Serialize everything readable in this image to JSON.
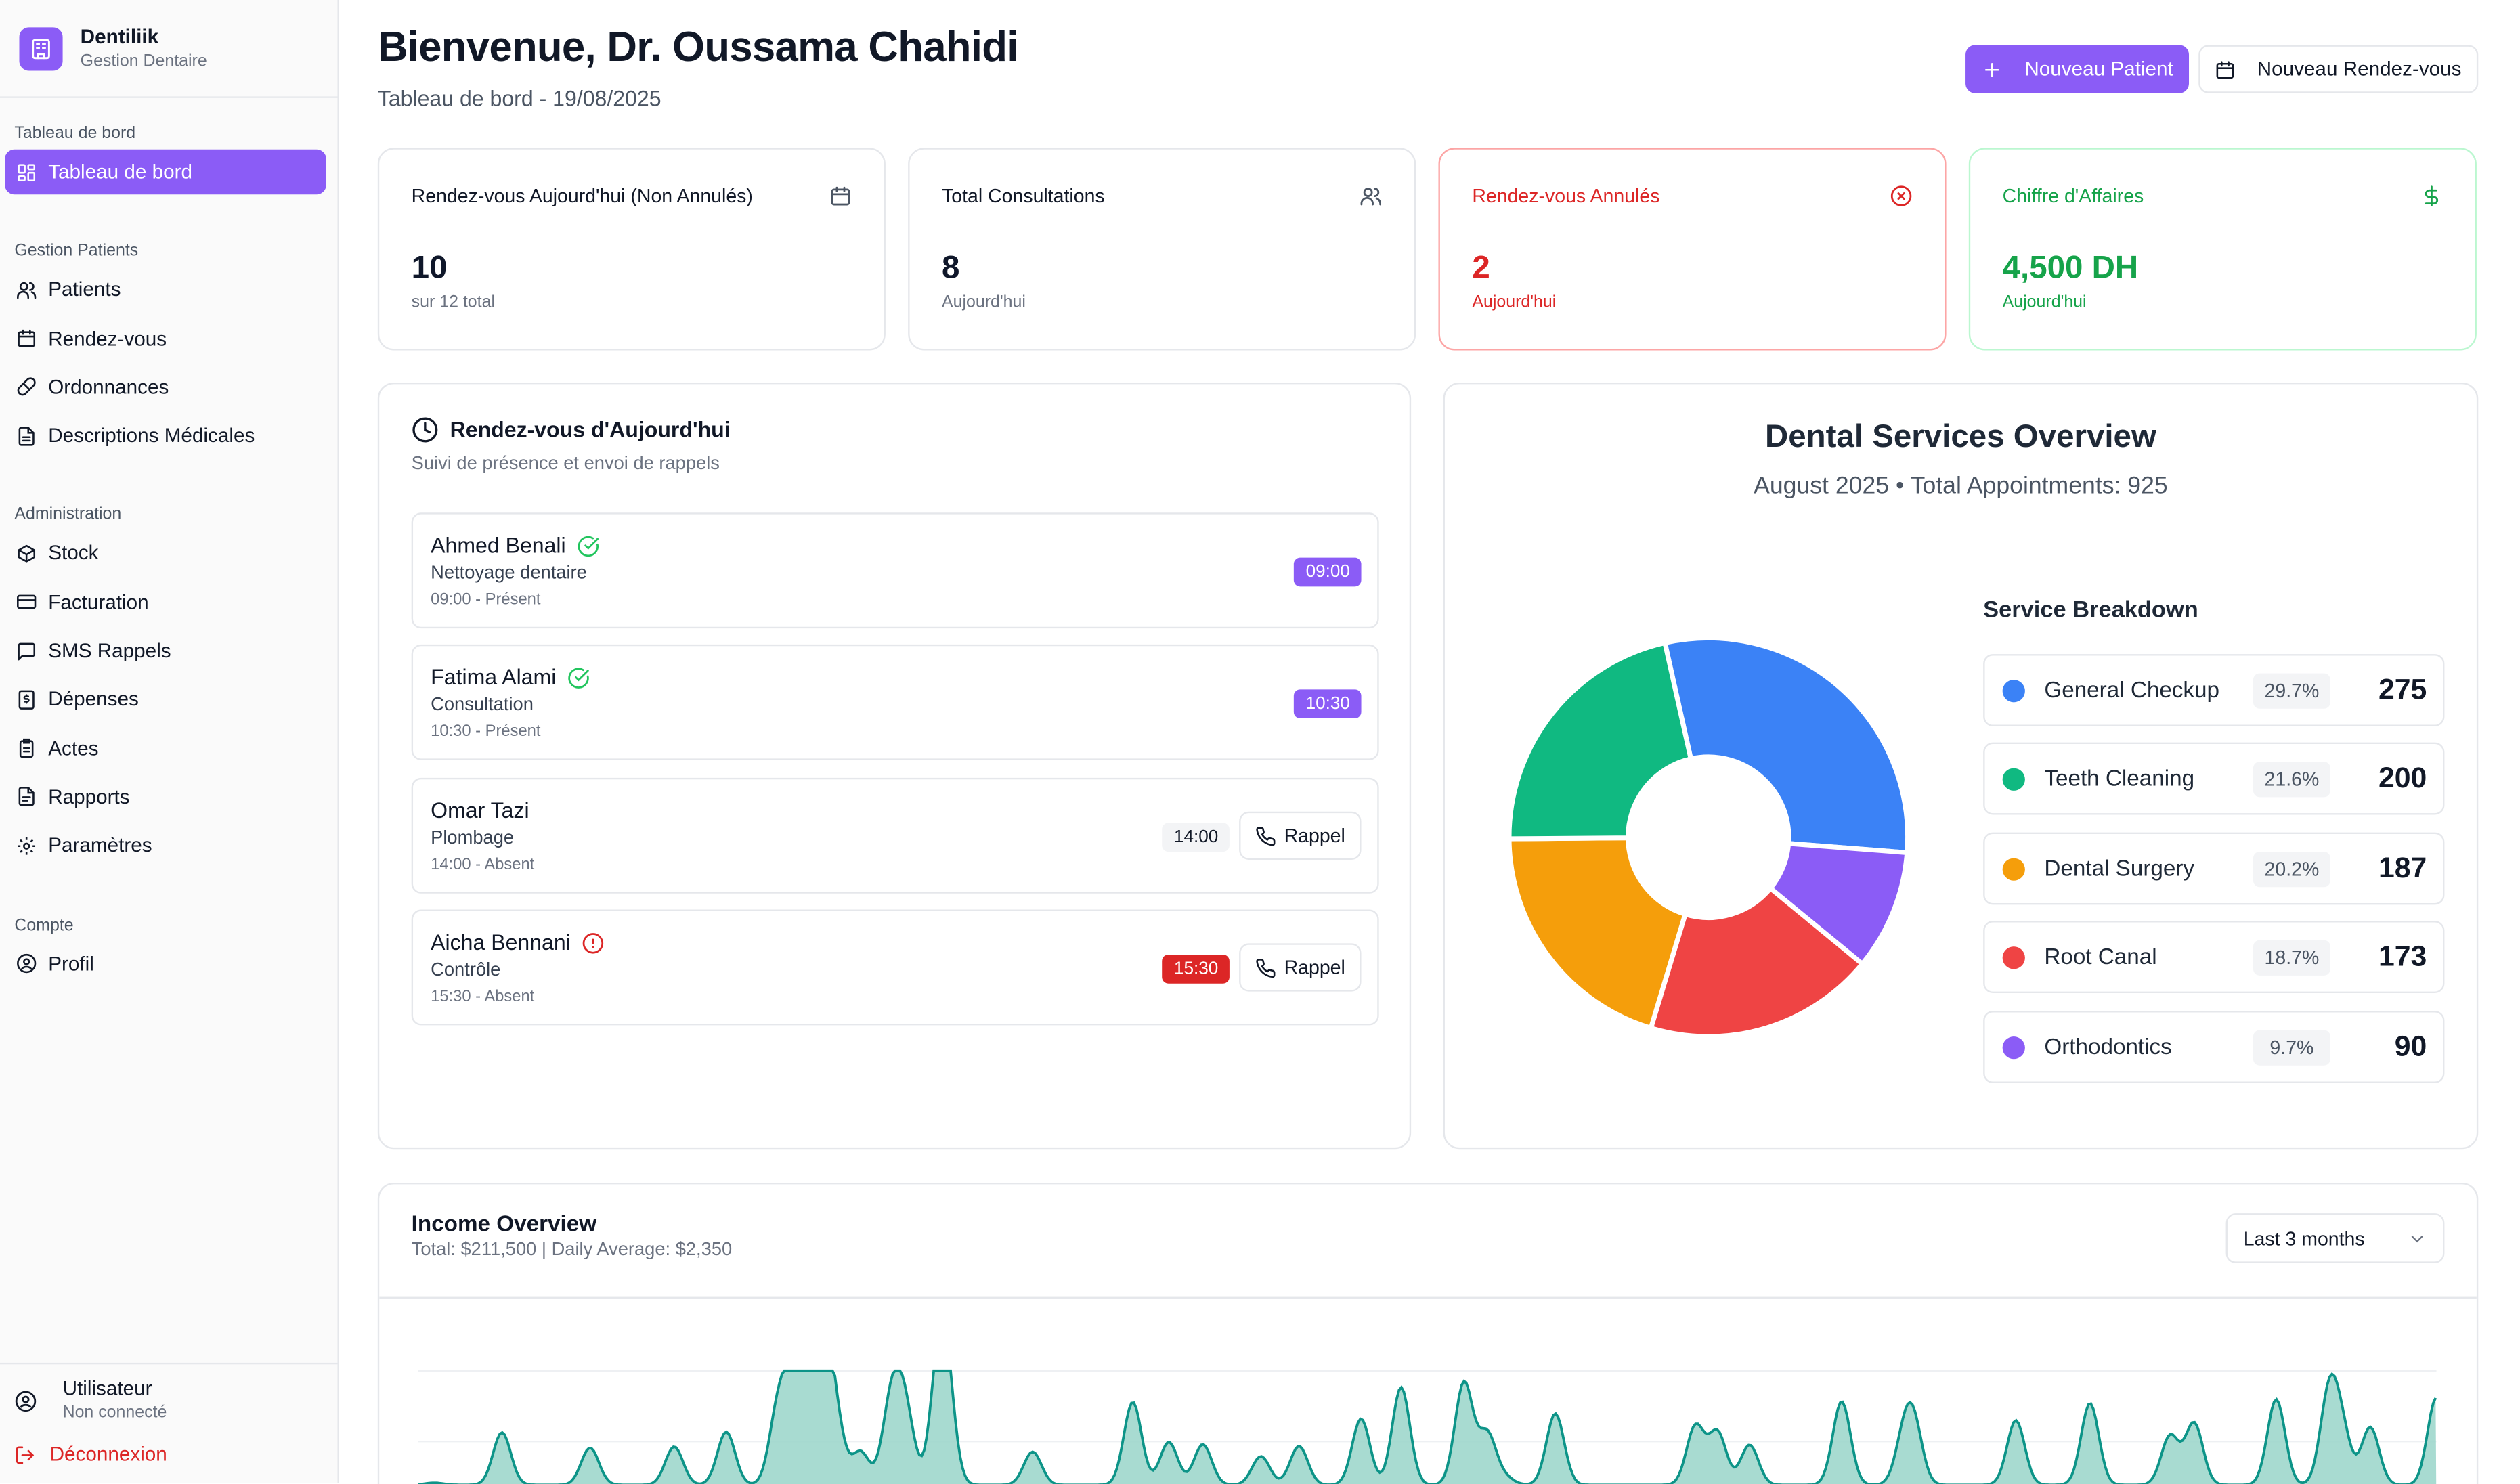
{
  "brand": {
    "name": "Dentiliik",
    "subtitle": "Gestion Dentaire"
  },
  "sidebar": {
    "groups": [
      {
        "label": "Tableau de bord",
        "items": [
          {
            "label": "Tableau de bord",
            "icon": "dashboard-icon",
            "active": true
          }
        ]
      },
      {
        "label": "Gestion Patients",
        "items": [
          {
            "label": "Patients",
            "icon": "users-icon"
          },
          {
            "label": "Rendez-vous",
            "icon": "calendar-icon"
          },
          {
            "label": "Ordonnances",
            "icon": "pill-icon"
          },
          {
            "label": "Descriptions Médicales",
            "icon": "file-text-icon"
          }
        ]
      },
      {
        "label": "Administration",
        "items": [
          {
            "label": "Stock",
            "icon": "package-icon"
          },
          {
            "label": "Facturation",
            "icon": "credit-card-icon"
          },
          {
            "label": "SMS Rappels",
            "icon": "message-icon"
          },
          {
            "label": "Dépenses",
            "icon": "receipt-icon"
          },
          {
            "label": "Actes",
            "icon": "clipboard-icon"
          },
          {
            "label": "Rapports",
            "icon": "report-icon"
          },
          {
            "label": "Paramètres",
            "icon": "gear-icon"
          }
        ]
      },
      {
        "label": "Compte",
        "items": [
          {
            "label": "Profil",
            "icon": "user-circle-icon"
          }
        ]
      }
    ],
    "user": {
      "name": "Utilisateur",
      "status": "Non connecté"
    },
    "logout_label": "Déconnexion"
  },
  "header": {
    "title": "Bienvenue, Dr. Oussama Chahidi",
    "subtitle": "Tableau de bord - 19/08/2025",
    "new_patient_label": "Nouveau Patient",
    "new_appointment_label": "Nouveau Rendez-vous"
  },
  "stats": [
    {
      "label": "Rendez-vous Aujourd'hui (Non Annulés)",
      "value": "10",
      "footer": "sur 12 total",
      "icon": "calendar-icon",
      "tone": "default"
    },
    {
      "label": "Total Consultations",
      "value": "8",
      "footer": "Aujourd'hui",
      "icon": "users-icon",
      "tone": "default"
    },
    {
      "label": "Rendez-vous Annulés",
      "value": "2",
      "footer": "Aujourd'hui",
      "icon": "x-circle-icon",
      "tone": "red"
    },
    {
      "label": "Chiffre d'Affaires",
      "value": "4,500 DH",
      "footer": "Aujourd'hui",
      "icon": "dollar-icon",
      "tone": "green"
    }
  ],
  "appointments": {
    "title": "Rendez-vous d'Aujourd'hui",
    "subtitle": "Suivi de présence et envoi de rappels",
    "rappel_label": "Rappel",
    "items": [
      {
        "name": "Ahmed Benali",
        "service": "Nettoyage dentaire",
        "meta": "09:00 - Présent",
        "time": "09:00",
        "status": "present"
      },
      {
        "name": "Fatima Alami",
        "service": "Consultation",
        "meta": "10:30 - Présent",
        "time": "10:30",
        "status": "present"
      },
      {
        "name": "Omar Tazi",
        "service": "Plombage",
        "meta": "14:00 - Absent",
        "time": "14:00",
        "status": "absent"
      },
      {
        "name": "Aicha Bennani",
        "service": "Contrôle",
        "meta": "15:30 - Absent",
        "time": "15:30",
        "status": "alert"
      }
    ]
  },
  "services": {
    "title": "Dental Services Overview",
    "subtitle": "August 2025 • Total Appointments: 925",
    "breakdown_title": "Service Breakdown",
    "items": [
      {
        "label": "General Checkup",
        "pct": "29.7%",
        "count": "275",
        "color": "#3b82f6"
      },
      {
        "label": "Teeth Cleaning",
        "pct": "21.6%",
        "count": "200",
        "color": "#10b981"
      },
      {
        "label": "Dental Surgery",
        "pct": "20.2%",
        "count": "187",
        "color": "#f59e0b"
      },
      {
        "label": "Root Canal",
        "pct": "18.7%",
        "count": "173",
        "color": "#ef4444"
      },
      {
        "label": "Orthodontics",
        "pct": "9.7%",
        "count": "90",
        "color": "#8b5cf6"
      }
    ]
  },
  "chart_data": [
    {
      "type": "pie",
      "title": "Dental Services Overview",
      "categories": [
        "General Checkup",
        "Orthodontics",
        "Root Canal",
        "Dental Surgery",
        "Teeth Cleaning"
      ],
      "values": [
        275,
        90,
        173,
        187,
        200
      ],
      "colors": [
        "#3b82f6",
        "#8b5cf6",
        "#ef4444",
        "#f59e0b",
        "#10b981"
      ]
    },
    {
      "type": "area",
      "title": "Income Overview",
      "color": "#0d9488",
      "x": [
        8,
        42,
        86,
        128,
        154,
        180,
        188,
        199,
        201,
        208,
        221,
        236,
        240,
        244,
        260,
        261,
        264,
        307,
        357,
        375,
        392,
        421,
        440,
        471,
        491,
        522,
        524,
        534,
        543,
        568,
        638,
        649,
        665,
        711,
        742,
        747,
        798,
        798,
        835,
        875,
        887,
        928,
        954,
        955,
        961,
        975,
        1008
      ],
      "values": [
        380,
        9200,
        6500,
        6700,
        9300,
        13300,
        19200,
        18200,
        18700,
        12200,
        5800,
        11700,
        6600,
        9500,
        6000,
        14700,
        11200,
        5800,
        14500,
        7500,
        7100,
        5000,
        6800,
        11600,
        17100,
        14500,
        3700,
        8900,
        1200,
        12500,
        10300,
        9200,
        7000,
        14600,
        7100,
        9800,
        7500,
        3800,
        14300,
        8600,
        10800,
        15000,
        8500,
        7600,
        8300,
        10100,
        15300
      ]
    }
  ],
  "income": {
    "title": "Income Overview",
    "subtitle": "Total: $211,500 | Daily Average: $2,350",
    "range": "Last 3 months"
  }
}
